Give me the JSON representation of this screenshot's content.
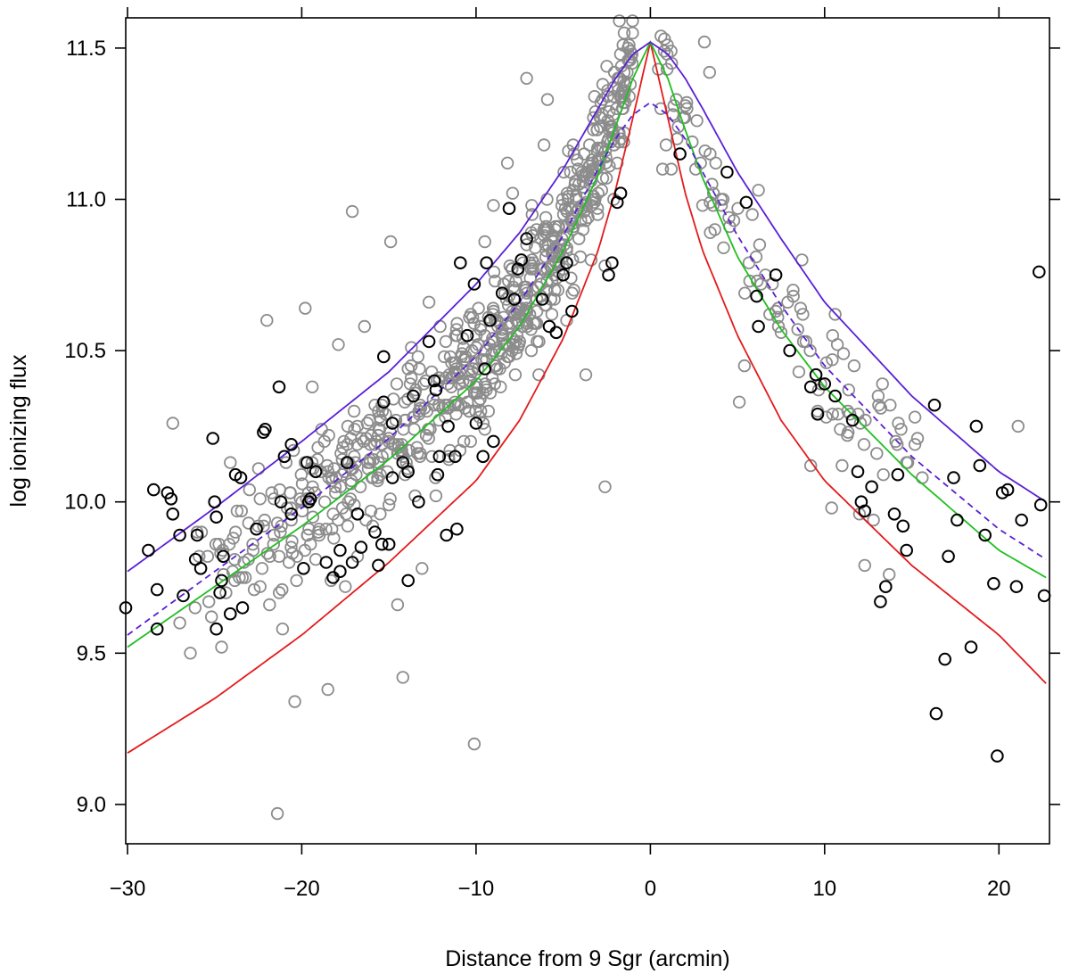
{
  "chart_data": {
    "type": "scatter",
    "title": "",
    "xlabel": "Distance from 9 Sgr (arcmin)",
    "ylabel": "log ionizing flux",
    "xlim": [
      -30.1,
      22.9
    ],
    "ylim": [
      8.87,
      11.6
    ],
    "x_ticks": [
      -30,
      -20,
      -10,
      0,
      10,
      20
    ],
    "x_tick_labels": [
      "−30",
      "−20",
      "−10",
      "0",
      "10",
      "20"
    ],
    "y_ticks": [
      9.0,
      9.5,
      10.0,
      10.5,
      11.0,
      11.5
    ],
    "y_tick_labels": [
      "9.0",
      "9.5",
      "10.0",
      "10.5",
      "11.0",
      "11.5"
    ],
    "grid": false,
    "colors": {
      "gray_points": "#8c8c8c",
      "black_points": "#000000",
      "red_curve": "#e31a1c",
      "green_curve": "#1fbf1f",
      "purple_curve": "#5a1fd6"
    },
    "gray_points_sample": [
      [
        -21.4,
        8.97
      ],
      [
        -20.4,
        9.34
      ],
      [
        -18.5,
        9.38
      ],
      [
        -10.1,
        9.2
      ],
      [
        -2.6,
        10.05
      ],
      [
        -14.2,
        9.42
      ],
      [
        -7.1,
        11.4
      ],
      [
        -5.9,
        11.33
      ],
      [
        3.1,
        11.52
      ],
      [
        3.4,
        11.42
      ],
      [
        -27.4,
        10.26
      ],
      [
        -17.1,
        10.96
      ],
      [
        -14.9,
        10.86
      ],
      [
        -12.7,
        10.66
      ],
      [
        -19.8,
        10.64
      ],
      [
        -16.4,
        10.58
      ],
      [
        -13.9,
        10.44
      ],
      [
        -22.0,
        10.6
      ],
      [
        -9.0,
        10.98
      ],
      [
        -8.2,
        11.12
      ],
      [
        -10.3,
        10.62
      ],
      [
        -11.1,
        10.55
      ],
      [
        -6.8,
        10.98
      ],
      [
        -4.7,
        11.16
      ],
      [
        -3.4,
        10.8
      ],
      [
        -15.6,
        10.3
      ],
      [
        -18.7,
        10.2
      ],
      [
        -20.9,
        10.13
      ],
      [
        -24.1,
        10.13
      ],
      [
        -26.0,
        9.9
      ],
      [
        -23.0,
        10.04
      ],
      [
        -19.5,
        9.86
      ],
      [
        -16.8,
        9.82
      ],
      [
        -12.3,
        10.02
      ],
      [
        -13.1,
        9.78
      ],
      [
        -14.5,
        9.66
      ],
      [
        -17.5,
        9.72
      ],
      [
        -21.1,
        9.58
      ],
      [
        -24.6,
        9.52
      ],
      [
        -27.0,
        9.6
      ],
      [
        -1.5,
        11.22
      ],
      [
        -2.1,
        11.0
      ],
      [
        -2.6,
        10.78
      ],
      [
        -3.7,
        10.42
      ],
      [
        -4.8,
        10.6
      ],
      [
        -5.6,
        10.88
      ],
      [
        -7.6,
        10.76
      ],
      [
        -8.8,
        10.44
      ],
      [
        -9.8,
        10.28
      ],
      [
        -11.8,
        10.32
      ],
      [
        0.6,
        11.3
      ],
      [
        0.9,
        11.18
      ],
      [
        1.2,
        11.1
      ],
      [
        0.7,
        11.1
      ],
      [
        1.6,
        11.24
      ],
      [
        2.1,
        11.3
      ],
      [
        2.6,
        11.1
      ],
      [
        3.0,
        10.98
      ],
      [
        3.7,
        10.9
      ],
      [
        4.2,
        10.84
      ],
      [
        5.1,
        10.33
      ],
      [
        5.4,
        10.45
      ],
      [
        6.2,
        11.03
      ],
      [
        6.6,
        10.75
      ],
      [
        7.2,
        10.63
      ],
      [
        8.2,
        10.68
      ],
      [
        8.7,
        10.8
      ],
      [
        9.2,
        10.12
      ],
      [
        9.6,
        10.3
      ],
      [
        10.1,
        10.46
      ],
      [
        10.6,
        10.62
      ],
      [
        10.4,
        9.98
      ],
      [
        11.0,
        10.12
      ],
      [
        11.3,
        10.22
      ],
      [
        12.0,
        9.96
      ],
      [
        12.3,
        9.79
      ],
      [
        12.8,
        9.94
      ],
      [
        13.7,
        9.76
      ],
      [
        15.6,
        10.08
      ],
      [
        21.1,
        10.25
      ],
      [
        -19.4,
        10.38
      ],
      [
        -17.9,
        10.52
      ],
      [
        -15.3,
        10.48
      ],
      [
        -13.6,
        10.28
      ],
      [
        -11.5,
        10.17
      ],
      [
        -8.9,
        10.6
      ],
      [
        -6.4,
        10.42
      ],
      [
        -5.3,
        10.7
      ],
      [
        -4.2,
        10.96
      ],
      [
        -3.0,
        11.02
      ],
      [
        -25.4,
        9.82
      ],
      [
        -22.5,
        9.92
      ],
      [
        -20.3,
        9.74
      ],
      [
        -18.2,
        9.96
      ],
      [
        -16.1,
        10.14
      ],
      [
        -10.7,
        10.2
      ],
      [
        -9.5,
        10.86
      ],
      [
        -7.9,
        11.02
      ],
      [
        -6.1,
        11.18
      ],
      [
        -4.3,
        11.06
      ]
    ],
    "black_points": [
      [
        -30.1,
        9.65
      ],
      [
        -28.8,
        9.84
      ],
      [
        -28.5,
        10.04
      ],
      [
        -28.3,
        9.71
      ],
      [
        -28.3,
        9.58
      ],
      [
        -27.7,
        10.03
      ],
      [
        -27.5,
        10.01
      ],
      [
        -27.4,
        9.96
      ],
      [
        -27.0,
        9.89
      ],
      [
        -26.8,
        9.69
      ],
      [
        -26.1,
        9.81
      ],
      [
        -26.0,
        9.89
      ],
      [
        -25.8,
        9.78
      ],
      [
        -25.1,
        10.21
      ],
      [
        -25.0,
        10.0
      ],
      [
        -24.9,
        9.95
      ],
      [
        -24.9,
        9.58
      ],
      [
        -24.7,
        9.7
      ],
      [
        -24.6,
        9.74
      ],
      [
        -24.5,
        9.82
      ],
      [
        -24.1,
        9.63
      ],
      [
        -23.8,
        10.09
      ],
      [
        -23.5,
        10.08
      ],
      [
        -23.4,
        9.65
      ],
      [
        -22.6,
        9.91
      ],
      [
        -22.2,
        10.23
      ],
      [
        -22.1,
        10.24
      ],
      [
        -21.3,
        10.38
      ],
      [
        -21.2,
        10.0
      ],
      [
        -21.0,
        10.15
      ],
      [
        -20.6,
        10.19
      ],
      [
        -20.6,
        9.96
      ],
      [
        -19.9,
        9.78
      ],
      [
        -19.7,
        10.13
      ],
      [
        -19.6,
        10.0
      ],
      [
        -19.5,
        10.01
      ],
      [
        -19.2,
        10.1
      ],
      [
        -18.6,
        9.8
      ],
      [
        -18.2,
        9.75
      ],
      [
        -17.8,
        9.84
      ],
      [
        -17.8,
        9.77
      ],
      [
        -17.4,
        10.13
      ],
      [
        -17.1,
        9.8
      ],
      [
        -16.8,
        9.96
      ],
      [
        -16.6,
        9.85
      ],
      [
        -15.8,
        9.9
      ],
      [
        -15.6,
        9.79
      ],
      [
        -15.4,
        9.86
      ],
      [
        -15.3,
        10.33
      ],
      [
        -15.3,
        10.48
      ],
      [
        -15.0,
        9.86
      ],
      [
        -14.8,
        10.26
      ],
      [
        -14.8,
        10.08
      ],
      [
        -14.2,
        10.13
      ],
      [
        -13.9,
        10.1
      ],
      [
        -13.9,
        9.74
      ],
      [
        -13.6,
        10.35
      ],
      [
        -13.3,
        10.0
      ],
      [
        -12.7,
        10.53
      ],
      [
        -12.4,
        10.4
      ],
      [
        -12.3,
        10.37
      ],
      [
        -12.2,
        10.09
      ],
      [
        -12.1,
        10.15
      ],
      [
        -11.7,
        9.89
      ],
      [
        -11.6,
        10.25
      ],
      [
        -11.2,
        10.15
      ],
      [
        -11.1,
        9.91
      ],
      [
        -10.9,
        10.79
      ],
      [
        -10.5,
        10.55
      ],
      [
        -10.1,
        10.72
      ],
      [
        -10.0,
        10.26
      ],
      [
        -9.6,
        10.15
      ],
      [
        -9.5,
        10.44
      ],
      [
        -9.4,
        10.79
      ],
      [
        -9.2,
        10.6
      ],
      [
        -9.0,
        10.2
      ],
      [
        -8.5,
        10.69
      ],
      [
        -8.1,
        10.97
      ],
      [
        -7.8,
        10.67
      ],
      [
        -7.6,
        10.77
      ],
      [
        -7.4,
        10.8
      ],
      [
        -7.1,
        10.87
      ],
      [
        -6.2,
        10.67
      ],
      [
        -5.8,
        10.58
      ],
      [
        -5.4,
        10.56
      ],
      [
        -5.0,
        10.75
      ],
      [
        -4.8,
        10.79
      ],
      [
        -4.5,
        10.63
      ],
      [
        -2.4,
        10.75
      ],
      [
        -2.2,
        10.79
      ],
      [
        -1.9,
        10.99
      ],
      [
        -1.7,
        11.02
      ],
      [
        1.7,
        11.15
      ],
      [
        4.4,
        11.09
      ],
      [
        5.5,
        10.99
      ],
      [
        6.1,
        10.68
      ],
      [
        6.2,
        10.58
      ],
      [
        7.2,
        10.75
      ],
      [
        8.0,
        10.5
      ],
      [
        9.2,
        10.38
      ],
      [
        9.5,
        10.42
      ],
      [
        9.6,
        10.29
      ],
      [
        10.0,
        10.39
      ],
      [
        10.6,
        10.35
      ],
      [
        11.6,
        10.27
      ],
      [
        11.9,
        10.1
      ],
      [
        12.1,
        10.0
      ],
      [
        12.3,
        9.97
      ],
      [
        12.7,
        10.05
      ],
      [
        13.2,
        9.67
      ],
      [
        13.5,
        9.72
      ],
      [
        14.0,
        9.96
      ],
      [
        14.2,
        10.09
      ],
      [
        14.5,
        9.92
      ],
      [
        14.7,
        9.84
      ],
      [
        16.3,
        10.32
      ],
      [
        16.4,
        9.3
      ],
      [
        16.9,
        9.48
      ],
      [
        17.1,
        9.82
      ],
      [
        17.4,
        10.08
      ],
      [
        17.6,
        9.94
      ],
      [
        18.4,
        9.52
      ],
      [
        18.7,
        10.25
      ],
      [
        18.9,
        10.12
      ],
      [
        19.2,
        9.89
      ],
      [
        19.7,
        9.73
      ],
      [
        19.9,
        9.16
      ],
      [
        20.2,
        10.03
      ],
      [
        20.5,
        10.04
      ],
      [
        21.0,
        9.72
      ],
      [
        21.3,
        9.94
      ],
      [
        22.3,
        10.76
      ],
      [
        22.4,
        9.99
      ],
      [
        22.6,
        9.69
      ]
    ],
    "series": [
      {
        "name": "red",
        "color": "#e31a1c",
        "style": "solid",
        "x": [
          -30,
          -25,
          -20,
          -15,
          -10,
          -7.5,
          -5,
          -3,
          -2,
          -1,
          0,
          1,
          2,
          3,
          5,
          7.5,
          10,
          15,
          20,
          22.7
        ],
        "y": [
          9.17,
          9.35,
          9.56,
          9.8,
          10.07,
          10.27,
          10.54,
          10.83,
          11.03,
          11.27,
          11.52,
          11.27,
          11.02,
          10.83,
          10.55,
          10.27,
          10.07,
          9.79,
          9.56,
          9.4
        ]
      },
      {
        "name": "green",
        "color": "#1fbf1f",
        "style": "solid",
        "x": [
          -30,
          -25,
          -20,
          -15,
          -10,
          -7.5,
          -5,
          -3,
          -2,
          -1,
          0,
          1,
          2,
          3,
          5,
          7.5,
          10,
          15,
          20,
          22.7
        ],
        "y": [
          9.52,
          9.72,
          9.92,
          10.14,
          10.4,
          10.58,
          10.83,
          11.08,
          11.24,
          11.4,
          11.52,
          11.4,
          11.23,
          11.07,
          10.81,
          10.57,
          10.38,
          10.09,
          9.84,
          9.75
        ]
      },
      {
        "name": "purple",
        "color": "#5a1fd6",
        "style": "solid",
        "x": [
          -30,
          -25,
          -20,
          -15,
          -10,
          -7.5,
          -5,
          -3,
          -2,
          -1,
          0,
          1,
          2,
          3,
          5,
          7.5,
          10,
          15,
          20,
          22.7
        ],
        "y": [
          9.77,
          9.98,
          10.2,
          10.43,
          10.72,
          10.89,
          11.1,
          11.3,
          11.4,
          11.48,
          11.52,
          11.48,
          11.4,
          11.3,
          11.09,
          10.87,
          10.66,
          10.35,
          10.1,
          10.0
        ]
      },
      {
        "name": "purple-dashed",
        "color": "#5a1fd6",
        "style": "dashed",
        "x": [
          -30,
          -25,
          -20,
          -15,
          -10,
          -7.5,
          -5,
          -3,
          -2,
          -1,
          0,
          1,
          2,
          3,
          5,
          7.5,
          10,
          15,
          20,
          22.7
        ],
        "y": [
          9.56,
          9.77,
          9.98,
          10.21,
          10.48,
          10.66,
          10.88,
          11.1,
          11.2,
          11.28,
          11.32,
          11.28,
          11.2,
          11.09,
          10.88,
          10.65,
          10.45,
          10.15,
          9.91,
          9.81
        ]
      }
    ]
  }
}
